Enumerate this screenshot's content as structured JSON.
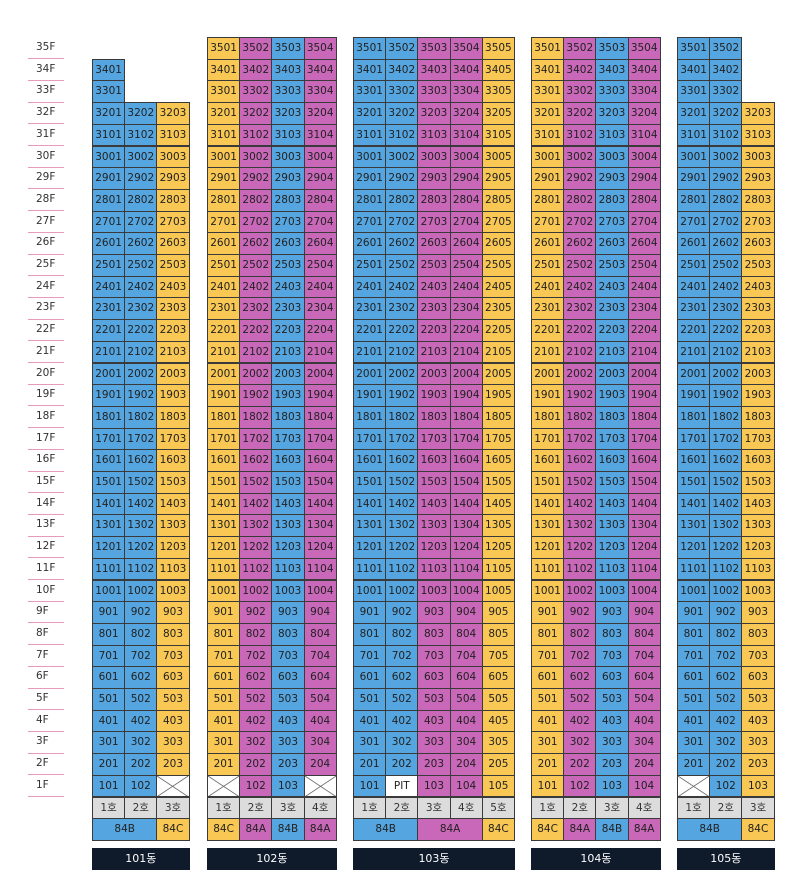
{
  "floors": [
    "35F",
    "34F",
    "33F",
    "32F",
    "31F",
    "30F",
    "29F",
    "28F",
    "27F",
    "26F",
    "25F",
    "24F",
    "23F",
    "22F",
    "21F",
    "20F",
    "19F",
    "18F",
    "17F",
    "16F",
    "15F",
    "14F",
    "13F",
    "12F",
    "11F",
    "10F",
    "9F",
    "8F",
    "7F",
    "6F",
    "5F",
    "4F",
    "3F",
    "2F",
    "1F"
  ],
  "colors": {
    "84A": "#c967b8",
    "84B": "#55a6e0",
    "84C": "#f9c753",
    "grid": "#3a3a3a",
    "header_bg": "#dcdcdc",
    "building_bg": "#0f1a2b"
  },
  "special_labels": {
    "pit": "PIT"
  },
  "buildings": [
    {
      "name": "101동",
      "units": [
        "1호",
        "2호",
        "3호"
      ],
      "columns": [
        {
          "type": "84B",
          "floors": [
            1,
            34
          ]
        },
        {
          "type": "84B",
          "floors": [
            1,
            32
          ]
        },
        {
          "type": "84C",
          "floors": [
            2,
            32
          ],
          "cross_1f": true
        }
      ],
      "types_row": [
        {
          "label": "84B",
          "span": 2
        },
        {
          "label": "84C",
          "span": 1
        }
      ]
    },
    {
      "name": "102동",
      "units": [
        "1호",
        "2호",
        "3호",
        "4호"
      ],
      "columns": [
        {
          "type": "84C",
          "floors": [
            2,
            35
          ],
          "cross_1f": true
        },
        {
          "type": "84A",
          "floors": [
            1,
            35
          ]
        },
        {
          "type": "84B",
          "floors": [
            1,
            35
          ]
        },
        {
          "type": "84A",
          "floors": [
            2,
            35
          ],
          "cross_1f": true
        }
      ],
      "types_row": [
        {
          "label": "84C",
          "span": 1
        },
        {
          "label": "84A",
          "span": 1
        },
        {
          "label": "84B",
          "span": 1
        },
        {
          "label": "84A",
          "span": 1
        }
      ]
    },
    {
      "name": "103동",
      "units": [
        "1호",
        "2호",
        "3호",
        "4호",
        "5호"
      ],
      "columns": [
        {
          "type": "84B",
          "floors": [
            1,
            35
          ]
        },
        {
          "type": "84B",
          "floors": [
            2,
            35
          ],
          "pit_1f": true
        },
        {
          "type": "84A",
          "floors": [
            1,
            35
          ]
        },
        {
          "type": "84A",
          "floors": [
            1,
            35
          ]
        },
        {
          "type": "84C",
          "floors": [
            1,
            35
          ]
        }
      ],
      "types_row": [
        {
          "label": "84B",
          "span": 2
        },
        {
          "label": "84A",
          "span": 2
        },
        {
          "label": "84C",
          "span": 1
        }
      ]
    },
    {
      "name": "104동",
      "units": [
        "1호",
        "2호",
        "3호",
        "4호"
      ],
      "columns": [
        {
          "type": "84C",
          "floors": [
            1,
            35
          ]
        },
        {
          "type": "84A",
          "floors": [
            1,
            35
          ]
        },
        {
          "type": "84B",
          "floors": [
            1,
            35
          ]
        },
        {
          "type": "84A",
          "floors": [
            1,
            35
          ]
        }
      ],
      "types_row": [
        {
          "label": "84C",
          "span": 1
        },
        {
          "label": "84A",
          "span": 1
        },
        {
          "label": "84B",
          "span": 1
        },
        {
          "label": "84A",
          "span": 1
        }
      ]
    },
    {
      "name": "105동",
      "units": [
        "1호",
        "2호",
        "3호"
      ],
      "columns": [
        {
          "type": "84B",
          "floors": [
            2,
            35
          ],
          "cross_1f": true
        },
        {
          "type": "84B",
          "floors": [
            1,
            35
          ]
        },
        {
          "type": "84C",
          "floors": [
            1,
            32
          ]
        }
      ],
      "types_row": [
        {
          "label": "84B",
          "span": 2
        },
        {
          "label": "84C",
          "span": 1
        }
      ]
    }
  ]
}
